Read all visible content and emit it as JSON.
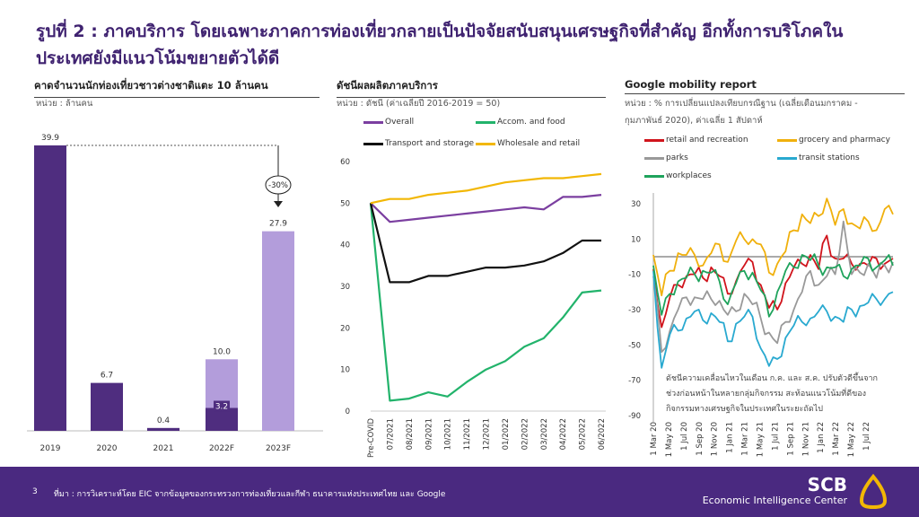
{
  "title_line1": "รูปที่ 2 : ภาคบริการ โดยเฉพาะภาคการท่องเที่ยวกลายเป็นปัจจัยสนับสนุนเศรษฐกิจที่สำคัญ อีกทั้งการบริโภคใน",
  "title_line2": "ประเทศยังมีแนวโน้มขยายตัวได้ดี",
  "footer": {
    "page": "3",
    "source": "ที่มา : การวิเคราะห์โดย EIC จากข้อมูลของกระทรวงการท่องเที่ยวและกีฬา ธนาคารแห่งประเทศไทย และ Google",
    "brand": "SCB",
    "brand_sub": "Economic Intelligence Center"
  },
  "colors": {
    "dark_purple": "#4f2d7f",
    "light_purple": "#b39ddb",
    "overall": "#7b3fa0",
    "accom": "#22b36b",
    "transport": "#111111",
    "wholesale": "#f2b705",
    "retail": "#d0141c",
    "grocery": "#f0b00c",
    "parks": "#999999",
    "transit": "#29a9d0",
    "workplaces": "#1fa35c"
  },
  "chart_data": [
    {
      "type": "bar",
      "title": "คาดจำนวนนักท่องเที่ยวชาวต่างชาติแตะ 10 ล้านคน",
      "unit": "หน่วย : ล้านคน",
      "categories": [
        "2019",
        "2020",
        "2021",
        "2022F",
        "2023F"
      ],
      "values": [
        39.9,
        6.7,
        0.4,
        10.0,
        27.9
      ],
      "labels": [
        "39.9",
        "6.7",
        "0.4",
        "10.0",
        "27.9"
      ],
      "actual_part_2022F": 3.2,
      "actual_label": "3.2",
      "annotation": "-30%",
      "ylim": [
        0,
        40
      ]
    },
    {
      "type": "line",
      "title": "ดัชนีผลผลิตภาคบริการ",
      "unit": "หน่วย : ดัชนี (ค่าเฉลี่ยปี 2016-2019 = 50)",
      "categories": [
        "Pre-COVID",
        "07/2021",
        "08/2021",
        "09/2021",
        "10/2021",
        "11/2021",
        "12/2021",
        "01/2022",
        "02/2022",
        "03/2022",
        "04/2022",
        "05/2022",
        "06/2022"
      ],
      "yticks": [
        "0",
        "10",
        "20",
        "30",
        "40",
        "50",
        "60"
      ],
      "ylim": [
        0,
        60
      ],
      "series": [
        {
          "name": "Overall",
          "color": "overall",
          "values": [
            50,
            45.5,
            46,
            46.5,
            47,
            47.5,
            48,
            48.5,
            49,
            48.5,
            51.5,
            51.5,
            52
          ]
        },
        {
          "name": "Accom. and food",
          "color": "accom",
          "values": [
            50,
            2.5,
            3,
            4.5,
            3.5,
            7,
            10,
            12,
            15.5,
            17.5,
            22.5,
            28.5,
            29
          ]
        },
        {
          "name": "Transport and storage",
          "color": "transport",
          "values": [
            50,
            31,
            31,
            32.5,
            32.5,
            33.5,
            34.5,
            34.5,
            35,
            36,
            38,
            41,
            41
          ]
        },
        {
          "name": "Wholesale and retail",
          "color": "wholesale",
          "values": [
            50,
            51,
            51,
            52,
            52.5,
            53,
            54,
            55,
            55.5,
            56,
            56,
            56.5,
            57
          ]
        }
      ]
    },
    {
      "type": "line",
      "title": "Google mobility report",
      "unit_line1": "หน่วย : % การเปลี่ยนแปลงเทียบกรณีฐาน (เฉลี่ยเดือนมกราคม -",
      "unit_line2": "กุมภาพันธ์ 2020), ค่าเฉลี่ย 1 สัปดาห์",
      "xticks": [
        "1 Mar 20",
        "1 May 20",
        "1 Jul 20",
        "1 Sep 20",
        "1 Nov 20",
        "1 Jan 21",
        "1 Mar 21",
        "1 May 21",
        "1 Jul 21",
        "1 Sep 21",
        "1 Nov 21",
        "1 Jan 22",
        "1 Mar 22",
        "1 May 22",
        "1 Jul 22"
      ],
      "yticks": [
        "30",
        "10",
        "-10",
        "-30",
        "-50",
        "-70",
        "-90"
      ],
      "ylim": [
        -90,
        30
      ],
      "note": "ดัชนีความเคลื่อนไหวในเดือน ก.ค. และ ส.ค. ปรับตัวดีขึ้นจากช่วงก่อนหน้าในหลายกลุ่มกิจกรรม สะท้อนแนวโน้มที่ดีของกิจกรรมทางเศรษฐกิจในประเทศในระยะถัดไป",
      "series": [
        {
          "name": "retail and recreation",
          "color": "retail",
          "values": [
            -5,
            -40,
            -25,
            -15,
            -12,
            -8,
            -12,
            -8,
            -10,
            -22,
            -12,
            -5,
            -5,
            -15,
            -30,
            -28,
            -15,
            -8,
            -3,
            0,
            -5,
            12,
            -3,
            0,
            -5,
            -2,
            -5,
            -3,
            -3,
            -2
          ]
        },
        {
          "name": "grocery and pharmacy",
          "color": "grocery",
          "values": [
            0,
            -20,
            -8,
            0,
            2,
            0,
            -3,
            2,
            5,
            -2,
            8,
            12,
            10,
            5,
            -8,
            -5,
            5,
            15,
            22,
            20,
            22,
            35,
            18,
            25,
            20,
            15,
            22,
            15,
            25,
            25
          ]
        },
        {
          "name": "parks",
          "color": "parks",
          "values": [
            -10,
            -55,
            -40,
            -30,
            -25,
            -22,
            -25,
            -22,
            -25,
            -35,
            -30,
            -22,
            -25,
            -35,
            -45,
            -48,
            -38,
            -28,
            -20,
            -10,
            -15,
            -12,
            -8,
            20,
            -12,
            -8,
            -5,
            -10,
            -5,
            -5
          ]
        },
        {
          "name": "transit stations",
          "color": "transit",
          "values": [
            -10,
            -62,
            -45,
            -40,
            -35,
            -33,
            -35,
            -33,
            -35,
            -48,
            -40,
            -33,
            -35,
            -50,
            -62,
            -60,
            -45,
            -40,
            -35,
            -35,
            -33,
            -30,
            -35,
            -35,
            -30,
            -30,
            -25,
            -25,
            -22,
            -20
          ]
        },
        {
          "name": "workplaces",
          "color": "workplaces",
          "values": [
            -5,
            -35,
            -20,
            -15,
            -10,
            -10,
            -10,
            -8,
            -15,
            -25,
            -15,
            -10,
            -8,
            -20,
            -32,
            -20,
            -10,
            -5,
            0,
            0,
            -5,
            -8,
            -5,
            -12,
            -5,
            -5,
            -3,
            -5,
            -3,
            -3
          ]
        }
      ]
    }
  ]
}
